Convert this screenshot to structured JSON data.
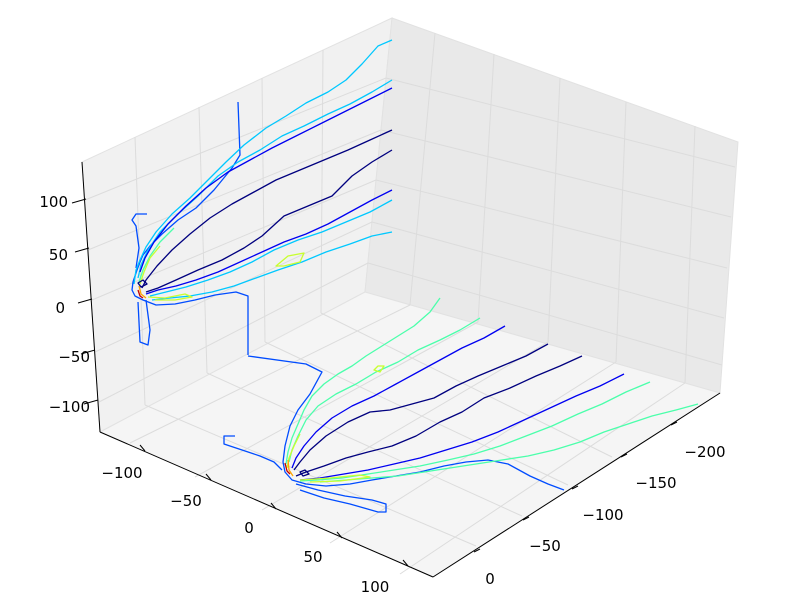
{
  "chart_data": {
    "type": "contour3d",
    "title": "",
    "xlabel": "",
    "ylabel": "",
    "zlabel": "",
    "xlim": [
      -225,
      0
    ],
    "ylim": [
      -125,
      125
    ],
    "zlim": [
      -125,
      125
    ],
    "grid": true,
    "x_ticks": [
      "−200",
      "−150",
      "−100",
      "−50",
      "0"
    ],
    "y_ticks": [
      "−100",
      "−50",
      "0",
      "50",
      "100"
    ],
    "z_ticks": [
      "−100",
      "−50",
      "0",
      "50",
      "100"
    ],
    "colormap": "jet",
    "colors": {
      "level_1": "#00007f",
      "level_2": "#0000f1",
      "level_3": "#004cff",
      "level_4": "#00c8ff",
      "level_5": "#4bffab",
      "level_6": "#c8ff2f",
      "level_7": "#ffa500",
      "level_8": "#c50000"
    }
  }
}
